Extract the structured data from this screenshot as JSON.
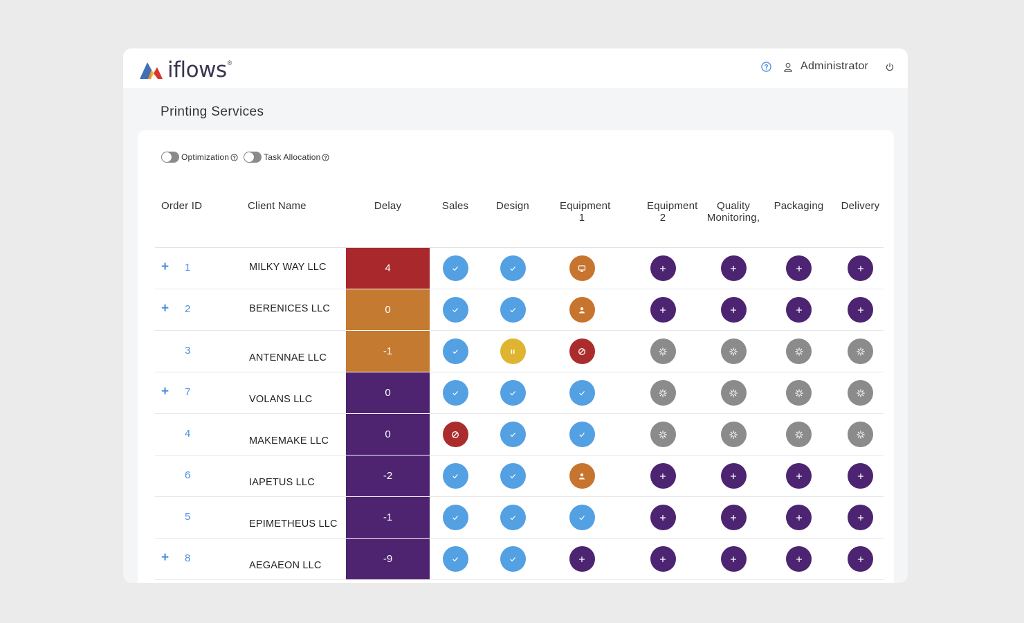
{
  "app": {
    "logo_text": "iflows",
    "logo_mark": "®"
  },
  "header": {
    "user_name": "Administrator"
  },
  "page": {
    "title": "Printing Services"
  },
  "toggles": [
    {
      "label": "Optimization",
      "on": false
    },
    {
      "label": "Task Allocation",
      "on": false
    }
  ],
  "table": {
    "columns": [
      "Order ID",
      "Client Name",
      "Delay",
      "Sales",
      "Design",
      "Equipment 1",
      "Equipment 2",
      "Quality Monitoring,",
      "Packaging",
      "Delivery"
    ],
    "rows": [
      {
        "expand": "+",
        "order_id": "1",
        "client": "MILKY WAY LLC",
        "delay": "4",
        "delay_color": "#a8282b",
        "status": [
          "done",
          "done",
          "monitor",
          "add",
          "add",
          "add",
          "add"
        ]
      },
      {
        "expand": "+",
        "order_id": "2",
        "client": "BERENICES LLC",
        "delay": "0",
        "delay_color": "#c47a30",
        "status": [
          "done",
          "done",
          "user",
          "add",
          "add",
          "add",
          "add"
        ]
      },
      {
        "expand": "",
        "order_id": "3",
        "client": "ANTENNAE LLC",
        "delay": "-1",
        "delay_color": "#c47a30",
        "status": [
          "done",
          "paused",
          "blocked",
          "pending",
          "pending",
          "pending",
          "pending"
        ]
      },
      {
        "expand": "+",
        "order_id": "7",
        "client": "VOLANS LLC",
        "delay": "0",
        "delay_color": "#4e2370",
        "status": [
          "done",
          "done",
          "done",
          "pending",
          "pending",
          "pending",
          "pending"
        ]
      },
      {
        "expand": "",
        "order_id": "4",
        "client": "MAKEMAKE LLC",
        "delay": "0",
        "delay_color": "#4e2370",
        "status": [
          "blocked",
          "done",
          "done",
          "pending",
          "pending",
          "pending",
          "pending"
        ]
      },
      {
        "expand": "",
        "order_id": "6",
        "client": "IAPETUS LLC",
        "delay": "-2",
        "delay_color": "#4e2370",
        "status": [
          "done",
          "done",
          "user",
          "add",
          "add",
          "add",
          "add"
        ]
      },
      {
        "expand": "",
        "order_id": "5",
        "client": "EPIMETHEUS LLC",
        "delay": "-1",
        "delay_color": "#4e2370",
        "status": [
          "done",
          "done",
          "done",
          "add",
          "add",
          "add",
          "add"
        ]
      },
      {
        "expand": "+",
        "order_id": "8",
        "client": "AEGAEON LLC",
        "delay": "-9",
        "delay_color": "#4e2370",
        "status": [
          "done",
          "done",
          "add",
          "add",
          "add",
          "add",
          "add"
        ]
      }
    ]
  },
  "status_colors": {
    "done": "#53a0e3",
    "add": "#4c2472",
    "pending": "#8b8b8b",
    "monitor": "#c7742e",
    "user": "#c7742e",
    "paused": "#dfb431",
    "blocked": "#aa2c2c"
  },
  "status_icons": {
    "done": "check-icon",
    "add": "plus-icon",
    "pending": "spinner-icon",
    "monitor": "monitor-icon",
    "user": "user-icon",
    "paused": "pause-icon",
    "blocked": "blocked-icon"
  }
}
